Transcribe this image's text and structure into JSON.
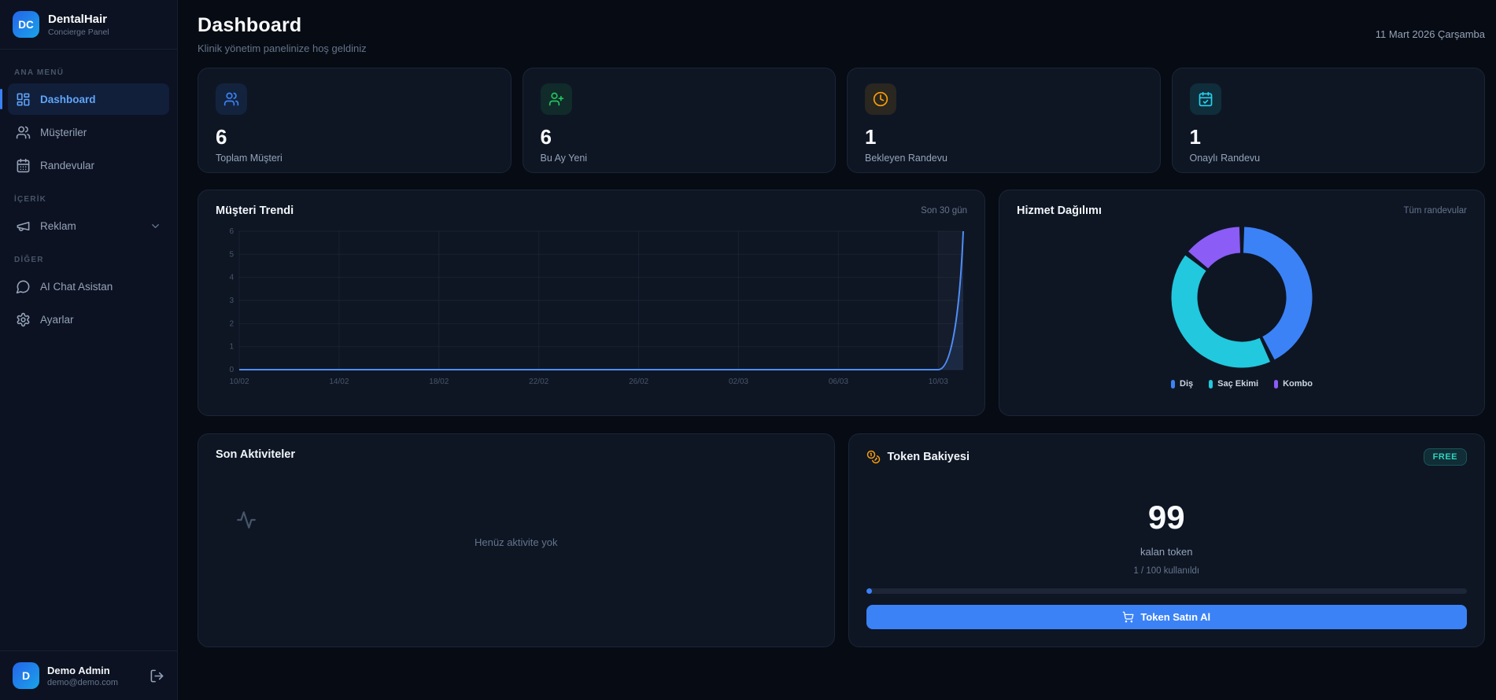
{
  "brand": {
    "initials": "DC",
    "name": "DentalHair",
    "subtitle": "Concierge Panel"
  },
  "sidebar": {
    "sections": [
      {
        "label": "ANA MENÜ",
        "items": [
          {
            "label": "Dashboard",
            "icon": "dashboard-grid-icon",
            "active": true
          },
          {
            "label": "Müşteriler",
            "icon": "users-icon",
            "active": false
          },
          {
            "label": "Randevular",
            "icon": "calendar-icon",
            "active": false
          }
        ]
      },
      {
        "label": "İÇERİK",
        "items": [
          {
            "label": "Reklam",
            "icon": "megaphone-icon",
            "active": false,
            "chevron": true
          }
        ]
      },
      {
        "label": "DİĞER",
        "items": [
          {
            "label": "AI Chat Asistan",
            "icon": "chat-icon",
            "active": false
          },
          {
            "label": "Ayarlar",
            "icon": "gear-icon",
            "active": false
          }
        ]
      }
    ],
    "user": {
      "initial": "D",
      "name": "Demo Admin",
      "email": "demo@demo.com"
    }
  },
  "header": {
    "title": "Dashboard",
    "subtitle": "Klinik yönetim panelinize hoş geldiniz",
    "date": "11 Mart 2026 Çarşamba"
  },
  "stats": [
    {
      "value": "6",
      "label": "Toplam Müşteri",
      "icon": "users-icon",
      "color": "#3b82f6"
    },
    {
      "value": "6",
      "label": "Bu Ay Yeni",
      "icon": "user-plus-icon",
      "color": "#22c55e"
    },
    {
      "value": "1",
      "label": "Bekleyen Randevu",
      "icon": "clock-icon",
      "color": "#f59e0b"
    },
    {
      "value": "1",
      "label": "Onaylı Randevu",
      "icon": "calendar-check-icon",
      "color": "#22d3ee"
    }
  ],
  "trend_card": {
    "title": "Müşteri Trendi",
    "period": "Son 30 gün"
  },
  "donut_card": {
    "title": "Hizmet Dağılımı",
    "period": "Tüm randevular"
  },
  "activities": {
    "title": "Son Aktiviteler",
    "empty_text": "Henüz aktivite yok"
  },
  "token": {
    "title": "Token Bakiyesi",
    "badge": "FREE",
    "balance": "99",
    "balance_label": "kalan token",
    "usage_text": "1 / 100 kullanıldı",
    "used": 1,
    "total": 100,
    "button_label": "Token Satın Al"
  },
  "chart_data": [
    {
      "type": "line",
      "title": "Müşteri Trendi",
      "x_ticks": [
        "10/02",
        "14/02",
        "18/02",
        "22/02",
        "26/02",
        "02/03",
        "06/03",
        "10/03"
      ],
      "tick_indexes": [
        0,
        4,
        8,
        12,
        16,
        20,
        24,
        28
      ],
      "values": [
        0,
        0,
        0,
        0,
        0,
        0,
        0,
        0,
        0,
        0,
        0,
        0,
        0,
        0,
        0,
        0,
        0,
        0,
        0,
        0,
        0,
        0,
        0,
        0,
        0,
        0,
        0,
        0,
        0,
        6
      ],
      "ylim": [
        0,
        6
      ],
      "y_ticks": [
        0,
        1,
        2,
        3,
        4,
        5,
        6
      ],
      "line_color": "#4f8ef7",
      "grid": true,
      "legend_position": "none"
    },
    {
      "type": "pie",
      "title": "Hizmet Dağılımı",
      "labels": [
        "Diş",
        "Saç Ekimi",
        "Kombo"
      ],
      "values": [
        3,
        3,
        1
      ],
      "percents": [
        43,
        43,
        14
      ],
      "colors": [
        "#3b82f6",
        "#22c8dd",
        "#8b5cf6"
      ],
      "donut": true,
      "legend_position": "bottom"
    }
  ]
}
